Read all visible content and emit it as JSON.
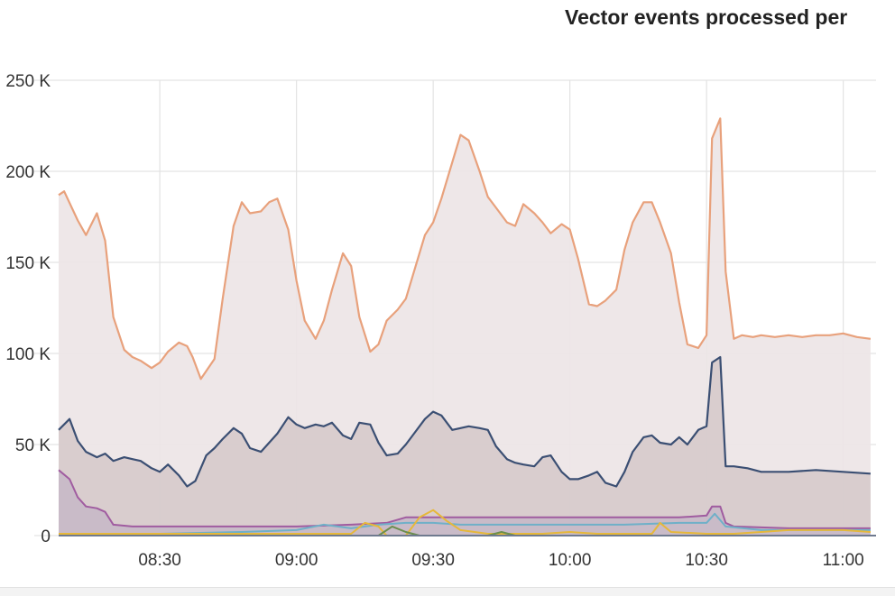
{
  "chart_data": {
    "type": "area",
    "title": "Vector events processed per",
    "ylim": [
      0,
      250000
    ],
    "y_ticks": [
      {
        "value": 0,
        "label": "0"
      },
      {
        "value": 50000,
        "label": "50 K"
      },
      {
        "value": 100000,
        "label": "100 K"
      },
      {
        "value": 150000,
        "label": "150 K"
      },
      {
        "value": 200000,
        "label": "200 K"
      },
      {
        "value": 250000,
        "label": "250 K"
      }
    ],
    "x_ticks": [
      {
        "value": 8.5,
        "label": "08:30"
      },
      {
        "value": 9.0,
        "label": "09:00"
      },
      {
        "value": 9.5,
        "label": "09:30"
      },
      {
        "value": 10.0,
        "label": "10:00"
      },
      {
        "value": 10.5,
        "label": "10:30"
      },
      {
        "value": 11.0,
        "label": "11:00"
      }
    ],
    "xlim": [
      8.13,
      11.12
    ],
    "grid": true,
    "series": [
      {
        "color": "#e8a17c",
        "fill": "#ece4e6",
        "points": [
          [
            8.13,
            187000
          ],
          [
            8.15,
            189000
          ],
          [
            8.2,
            173000
          ],
          [
            8.23,
            165000
          ],
          [
            8.27,
            177000
          ],
          [
            8.3,
            162000
          ],
          [
            8.33,
            120000
          ],
          [
            8.37,
            102000
          ],
          [
            8.4,
            98000
          ],
          [
            8.43,
            96000
          ],
          [
            8.47,
            92000
          ],
          [
            8.5,
            95000
          ],
          [
            8.53,
            101000
          ],
          [
            8.57,
            106000
          ],
          [
            8.6,
            104000
          ],
          [
            8.62,
            98000
          ],
          [
            8.65,
            86000
          ],
          [
            8.7,
            97000
          ],
          [
            8.73,
            130000
          ],
          [
            8.77,
            170000
          ],
          [
            8.8,
            183000
          ],
          [
            8.83,
            177000
          ],
          [
            8.87,
            178000
          ],
          [
            8.9,
            183000
          ],
          [
            8.93,
            185000
          ],
          [
            8.97,
            168000
          ],
          [
            9.0,
            140000
          ],
          [
            9.03,
            118000
          ],
          [
            9.07,
            108000
          ],
          [
            9.1,
            118000
          ],
          [
            9.13,
            135000
          ],
          [
            9.17,
            155000
          ],
          [
            9.2,
            148000
          ],
          [
            9.23,
            120000
          ],
          [
            9.27,
            101000
          ],
          [
            9.3,
            105000
          ],
          [
            9.33,
            118000
          ],
          [
            9.37,
            124000
          ],
          [
            9.4,
            130000
          ],
          [
            9.43,
            145000
          ],
          [
            9.47,
            165000
          ],
          [
            9.5,
            172000
          ],
          [
            9.53,
            185000
          ],
          [
            9.57,
            205000
          ],
          [
            9.6,
            220000
          ],
          [
            9.63,
            217000
          ],
          [
            9.67,
            200000
          ],
          [
            9.7,
            186000
          ],
          [
            9.73,
            180000
          ],
          [
            9.77,
            172000
          ],
          [
            9.8,
            170000
          ],
          [
            9.83,
            182000
          ],
          [
            9.87,
            177000
          ],
          [
            9.9,
            172000
          ],
          [
            9.93,
            166000
          ],
          [
            9.97,
            171000
          ],
          [
            10.0,
            168000
          ],
          [
            10.03,
            152000
          ],
          [
            10.07,
            127000
          ],
          [
            10.1,
            126000
          ],
          [
            10.13,
            129000
          ],
          [
            10.17,
            135000
          ],
          [
            10.2,
            157000
          ],
          [
            10.23,
            172000
          ],
          [
            10.27,
            183000
          ],
          [
            10.3,
            183000
          ],
          [
            10.33,
            172000
          ],
          [
            10.37,
            155000
          ],
          [
            10.4,
            128000
          ],
          [
            10.43,
            105000
          ],
          [
            10.47,
            103000
          ],
          [
            10.5,
            110000
          ],
          [
            10.52,
            218000
          ],
          [
            10.55,
            229000
          ],
          [
            10.57,
            145000
          ],
          [
            10.6,
            108000
          ],
          [
            10.63,
            110000
          ],
          [
            10.67,
            109000
          ],
          [
            10.7,
            110000
          ],
          [
            10.75,
            109000
          ],
          [
            10.8,
            110000
          ],
          [
            10.85,
            109000
          ],
          [
            10.9,
            110000
          ],
          [
            10.95,
            110000
          ],
          [
            11.0,
            111000
          ],
          [
            11.05,
            109000
          ],
          [
            11.1,
            108000
          ]
        ]
      },
      {
        "color": "#3b4f73",
        "fill": "#d6cacb",
        "points": [
          [
            8.13,
            58000
          ],
          [
            8.17,
            64000
          ],
          [
            8.2,
            52000
          ],
          [
            8.23,
            46000
          ],
          [
            8.27,
            43000
          ],
          [
            8.3,
            45000
          ],
          [
            8.33,
            41000
          ],
          [
            8.37,
            43000
          ],
          [
            8.4,
            42000
          ],
          [
            8.43,
            41000
          ],
          [
            8.47,
            37000
          ],
          [
            8.5,
            35000
          ],
          [
            8.53,
            39000
          ],
          [
            8.57,
            33000
          ],
          [
            8.6,
            27000
          ],
          [
            8.63,
            30000
          ],
          [
            8.67,
            44000
          ],
          [
            8.7,
            48000
          ],
          [
            8.73,
            53000
          ],
          [
            8.77,
            59000
          ],
          [
            8.8,
            56000
          ],
          [
            8.83,
            48000
          ],
          [
            8.87,
            46000
          ],
          [
            8.9,
            51000
          ],
          [
            8.93,
            56000
          ],
          [
            8.97,
            65000
          ],
          [
            9.0,
            61000
          ],
          [
            9.03,
            59000
          ],
          [
            9.07,
            61000
          ],
          [
            9.1,
            60000
          ],
          [
            9.13,
            62000
          ],
          [
            9.17,
            55000
          ],
          [
            9.2,
            53000
          ],
          [
            9.23,
            62000
          ],
          [
            9.27,
            61000
          ],
          [
            9.3,
            51000
          ],
          [
            9.33,
            44000
          ],
          [
            9.37,
            45000
          ],
          [
            9.4,
            50000
          ],
          [
            9.43,
            56000
          ],
          [
            9.47,
            64000
          ],
          [
            9.5,
            68000
          ],
          [
            9.53,
            66000
          ],
          [
            9.57,
            58000
          ],
          [
            9.6,
            59000
          ],
          [
            9.63,
            60000
          ],
          [
            9.67,
            59000
          ],
          [
            9.7,
            58000
          ],
          [
            9.73,
            49000
          ],
          [
            9.77,
            42000
          ],
          [
            9.8,
            40000
          ],
          [
            9.83,
            39000
          ],
          [
            9.87,
            38000
          ],
          [
            9.9,
            43000
          ],
          [
            9.93,
            44000
          ],
          [
            9.97,
            35000
          ],
          [
            10.0,
            31000
          ],
          [
            10.03,
            31000
          ],
          [
            10.07,
            33000
          ],
          [
            10.1,
            35000
          ],
          [
            10.13,
            29000
          ],
          [
            10.17,
            27000
          ],
          [
            10.2,
            35000
          ],
          [
            10.23,
            46000
          ],
          [
            10.27,
            54000
          ],
          [
            10.3,
            55000
          ],
          [
            10.33,
            51000
          ],
          [
            10.37,
            50000
          ],
          [
            10.4,
            54000
          ],
          [
            10.43,
            50000
          ],
          [
            10.47,
            58000
          ],
          [
            10.5,
            60000
          ],
          [
            10.52,
            95000
          ],
          [
            10.55,
            98000
          ],
          [
            10.57,
            38000
          ],
          [
            10.6,
            38000
          ],
          [
            10.65,
            37000
          ],
          [
            10.7,
            35000
          ],
          [
            10.8,
            35000
          ],
          [
            10.9,
            36000
          ],
          [
            11.0,
            35000
          ],
          [
            11.1,
            34000
          ]
        ]
      },
      {
        "color": "#a05ca0",
        "fill": "#c7b9c8",
        "points": [
          [
            8.13,
            36000
          ],
          [
            8.17,
            31000
          ],
          [
            8.2,
            21000
          ],
          [
            8.23,
            16000
          ],
          [
            8.27,
            15000
          ],
          [
            8.3,
            13000
          ],
          [
            8.33,
            6000
          ],
          [
            8.4,
            5000
          ],
          [
            8.6,
            5000
          ],
          [
            8.8,
            5000
          ],
          [
            9.0,
            5000
          ],
          [
            9.2,
            6000
          ],
          [
            9.33,
            7000
          ],
          [
            9.4,
            10000
          ],
          [
            9.6,
            10000
          ],
          [
            9.8,
            10000
          ],
          [
            10.0,
            10000
          ],
          [
            10.2,
            10000
          ],
          [
            10.4,
            10000
          ],
          [
            10.5,
            11000
          ],
          [
            10.52,
            16000
          ],
          [
            10.55,
            16000
          ],
          [
            10.57,
            7000
          ],
          [
            10.6,
            5000
          ],
          [
            10.8,
            4000
          ],
          [
            11.1,
            4000
          ]
        ]
      },
      {
        "color": "#6fb0c8",
        "fill": "none",
        "points": [
          [
            8.13,
            1000
          ],
          [
            8.5,
            1000
          ],
          [
            8.8,
            2000
          ],
          [
            9.0,
            3000
          ],
          [
            9.1,
            6000
          ],
          [
            9.15,
            5000
          ],
          [
            9.2,
            4000
          ],
          [
            9.3,
            6000
          ],
          [
            9.4,
            7000
          ],
          [
            9.5,
            7000
          ],
          [
            9.6,
            6000
          ],
          [
            9.8,
            6000
          ],
          [
            10.0,
            6000
          ],
          [
            10.2,
            6000
          ],
          [
            10.4,
            7000
          ],
          [
            10.5,
            7000
          ],
          [
            10.53,
            12000
          ],
          [
            10.57,
            5000
          ],
          [
            10.7,
            3000
          ],
          [
            11.1,
            3000
          ]
        ]
      },
      {
        "color": "#e6b83a",
        "fill": "none",
        "points": [
          [
            8.13,
            1000
          ],
          [
            8.3,
            1000
          ],
          [
            8.5,
            1000
          ],
          [
            8.8,
            1000
          ],
          [
            9.0,
            1000
          ],
          [
            9.2,
            1000
          ],
          [
            9.25,
            7000
          ],
          [
            9.3,
            5000
          ],
          [
            9.33,
            0
          ],
          [
            9.4,
            0
          ],
          [
            9.45,
            10000
          ],
          [
            9.5,
            14000
          ],
          [
            9.55,
            8000
          ],
          [
            9.6,
            3000
          ],
          [
            9.7,
            1000
          ],
          [
            9.8,
            1000
          ],
          [
            9.9,
            1000
          ],
          [
            10.0,
            2000
          ],
          [
            10.1,
            1000
          ],
          [
            10.3,
            1000
          ],
          [
            10.33,
            7000
          ],
          [
            10.37,
            2000
          ],
          [
            10.5,
            1000
          ],
          [
            10.6,
            1000
          ],
          [
            10.7,
            2000
          ],
          [
            10.8,
            3000
          ],
          [
            10.9,
            3000
          ],
          [
            11.0,
            3000
          ],
          [
            11.1,
            2000
          ]
        ]
      },
      {
        "color": "#6b8e4e",
        "fill": "none",
        "points": [
          [
            8.13,
            0
          ],
          [
            9.3,
            0
          ],
          [
            9.35,
            5000
          ],
          [
            9.4,
            2000
          ],
          [
            9.45,
            0
          ],
          [
            9.7,
            0
          ],
          [
            9.75,
            2000
          ],
          [
            9.8,
            0
          ],
          [
            11.1,
            0
          ]
        ]
      }
    ]
  }
}
